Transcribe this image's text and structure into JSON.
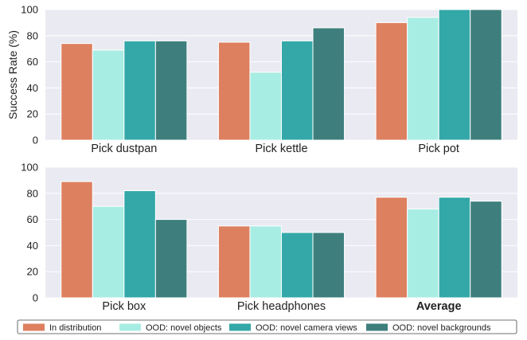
{
  "chart_data": [
    {
      "type": "bar",
      "panel": "top",
      "categories": [
        "Pick dustpan",
        "Pick kettle",
        "Pick pot"
      ],
      "ylabel": "Success Rate (%)",
      "ylim": [
        0,
        100
      ],
      "yticks": [
        0,
        20,
        40,
        60,
        80,
        100
      ],
      "grid": true,
      "series": [
        {
          "name": "In distribution",
          "values": [
            74,
            75,
            90
          ]
        },
        {
          "name": "OOD: novel objects",
          "values": [
            69,
            52,
            94
          ]
        },
        {
          "name": "OOD: novel camera views",
          "values": [
            76,
            76,
            100
          ]
        },
        {
          "name": "OOD: novel backgrounds",
          "values": [
            76,
            86,
            100
          ]
        }
      ]
    },
    {
      "type": "bar",
      "panel": "bottom",
      "categories": [
        "Pick box",
        "Pick headphones",
        "Average"
      ],
      "bold_categories": [
        "Average"
      ],
      "ylim": [
        0,
        100
      ],
      "yticks": [
        0,
        20,
        40,
        60,
        80,
        100
      ],
      "grid": true,
      "series": [
        {
          "name": "In distribution",
          "values": [
            89,
            55,
            77
          ]
        },
        {
          "name": "OOD: novel objects",
          "values": [
            70,
            55,
            68
          ]
        },
        {
          "name": "OOD: novel camera views",
          "values": [
            82,
            50,
            77
          ]
        },
        {
          "name": "OOD: novel backgrounds",
          "values": [
            60,
            50,
            74
          ]
        }
      ]
    }
  ],
  "legend": {
    "placement": "bottom",
    "items": [
      {
        "label": "In distribution",
        "color": "#DD8060"
      },
      {
        "label": "OOD: novel objects",
        "color": "#A8EDE3"
      },
      {
        "label": "OOD: novel camera views",
        "color": "#34A8A8"
      },
      {
        "label": "OOD: novel backgrounds",
        "color": "#3E7F7D"
      }
    ]
  },
  "colors": {
    "plot_background": "#EAEAF2",
    "grid": "#FFFFFF",
    "bar_edge": "#FFFFFF"
  }
}
